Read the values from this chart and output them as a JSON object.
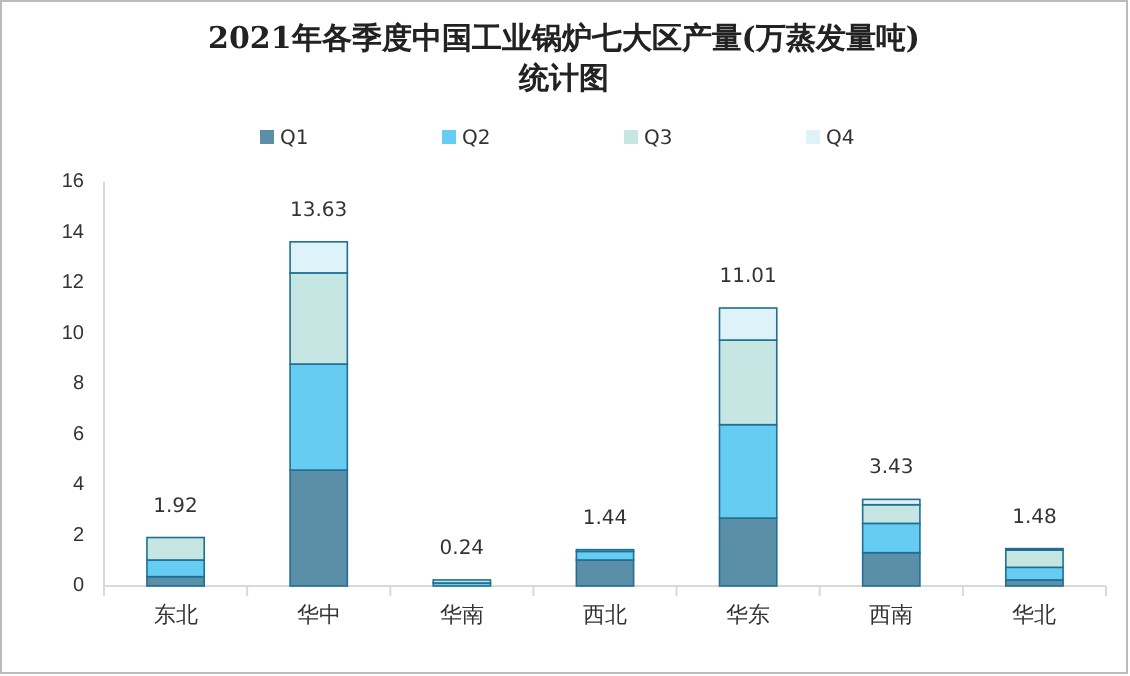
{
  "chart_data": {
    "type": "bar",
    "stacked": true,
    "title": "2021年各季度中国工业锅炉七大区产量(万蒸发量吨)统计图",
    "categories": [
      "东北",
      "华中",
      "华南",
      "西北",
      "华东",
      "西南",
      "华北"
    ],
    "series": [
      {
        "name": "Q1",
        "color": "#5b8fa8",
        "values": [
          0.37,
          4.59,
          null,
          1.03,
          2.69,
          1.32,
          0.24
        ]
      },
      {
        "name": "Q2",
        "color": "#66ccf2",
        "values": [
          0.66,
          4.2,
          0.12,
          0.34,
          3.7,
          1.16,
          0.5
        ]
      },
      {
        "name": "Q3",
        "color": "#c6e6e3",
        "values": [
          0.89,
          3.61,
          0.12,
          null,
          3.35,
          0.74,
          0.68
        ]
      },
      {
        "name": "Q4",
        "color": "#ddf2f9",
        "values": [
          0,
          1.23,
          0,
          0.07,
          1.27,
          0.21,
          0.06
        ]
      }
    ],
    "totals": [
      "1.92",
      "13.63",
      "0.24",
      "1.44",
      "11.01",
      "3.43",
      "1.48"
    ],
    "ylim": [
      0,
      16
    ],
    "yticks": [
      0,
      2,
      4,
      6,
      8,
      10,
      12,
      14,
      16
    ],
    "grid": false,
    "legend": "top"
  }
}
